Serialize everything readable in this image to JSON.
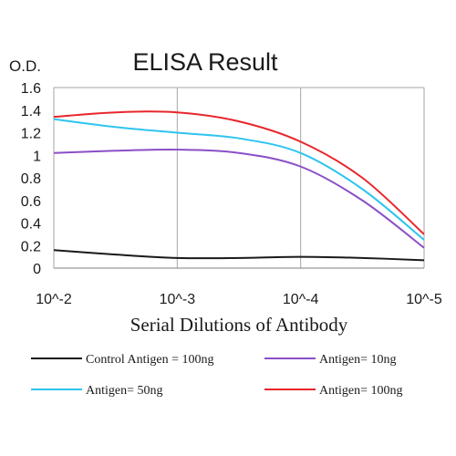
{
  "chart_data": {
    "type": "line",
    "title": "ELISA Result",
    "ylabel": "O.D.",
    "xlabel": "Serial Dilutions of Antibody",
    "x_ticks": [
      "10^-2",
      "10^-3",
      "10^-4",
      "10^-5"
    ],
    "y_ticks": [
      "0",
      "0.2",
      "0.4",
      "0.6",
      "0.8",
      "1",
      "1.2",
      "1.4",
      "1.6"
    ],
    "ylim": [
      0,
      1.6
    ],
    "x_scale": "log",
    "x_dilutions": [
      0.01,
      0.001,
      0.0001,
      1e-05
    ],
    "grid": "vertical gridlines at each tick, plus a top border line",
    "legend_position": "bottom",
    "series": [
      {
        "name": "Control Antigen = 100ng",
        "color": "#1a1a1a",
        "x": [
          0.01,
          0.003162,
          0.001,
          0.000316,
          0.0001,
          3.16e-05,
          1e-05
        ],
        "y": [
          0.16,
          0.12,
          0.09,
          0.09,
          0.1,
          0.09,
          0.07
        ]
      },
      {
        "name": "Antigen= 10ng",
        "color": "#8a4fc7",
        "x": [
          0.01,
          0.003162,
          0.001,
          0.000316,
          0.0001,
          3.16e-05,
          1e-05
        ],
        "y": [
          1.02,
          1.04,
          1.05,
          1.02,
          0.9,
          0.6,
          0.18
        ]
      },
      {
        "name": "Antigen= 50ng",
        "color": "#2ec4ef",
        "x": [
          0.01,
          0.003162,
          0.001,
          0.000316,
          0.0001,
          3.16e-05,
          1e-05
        ],
        "y": [
          1.32,
          1.25,
          1.2,
          1.15,
          1.02,
          0.7,
          0.25
        ]
      },
      {
        "name": "Antigen= 100ng",
        "color": "#e8262b",
        "x": [
          0.01,
          0.003162,
          0.001,
          0.000316,
          0.0001,
          3.16e-05,
          1e-05
        ],
        "y": [
          1.34,
          1.38,
          1.38,
          1.3,
          1.12,
          0.8,
          0.3
        ]
      }
    ]
  }
}
